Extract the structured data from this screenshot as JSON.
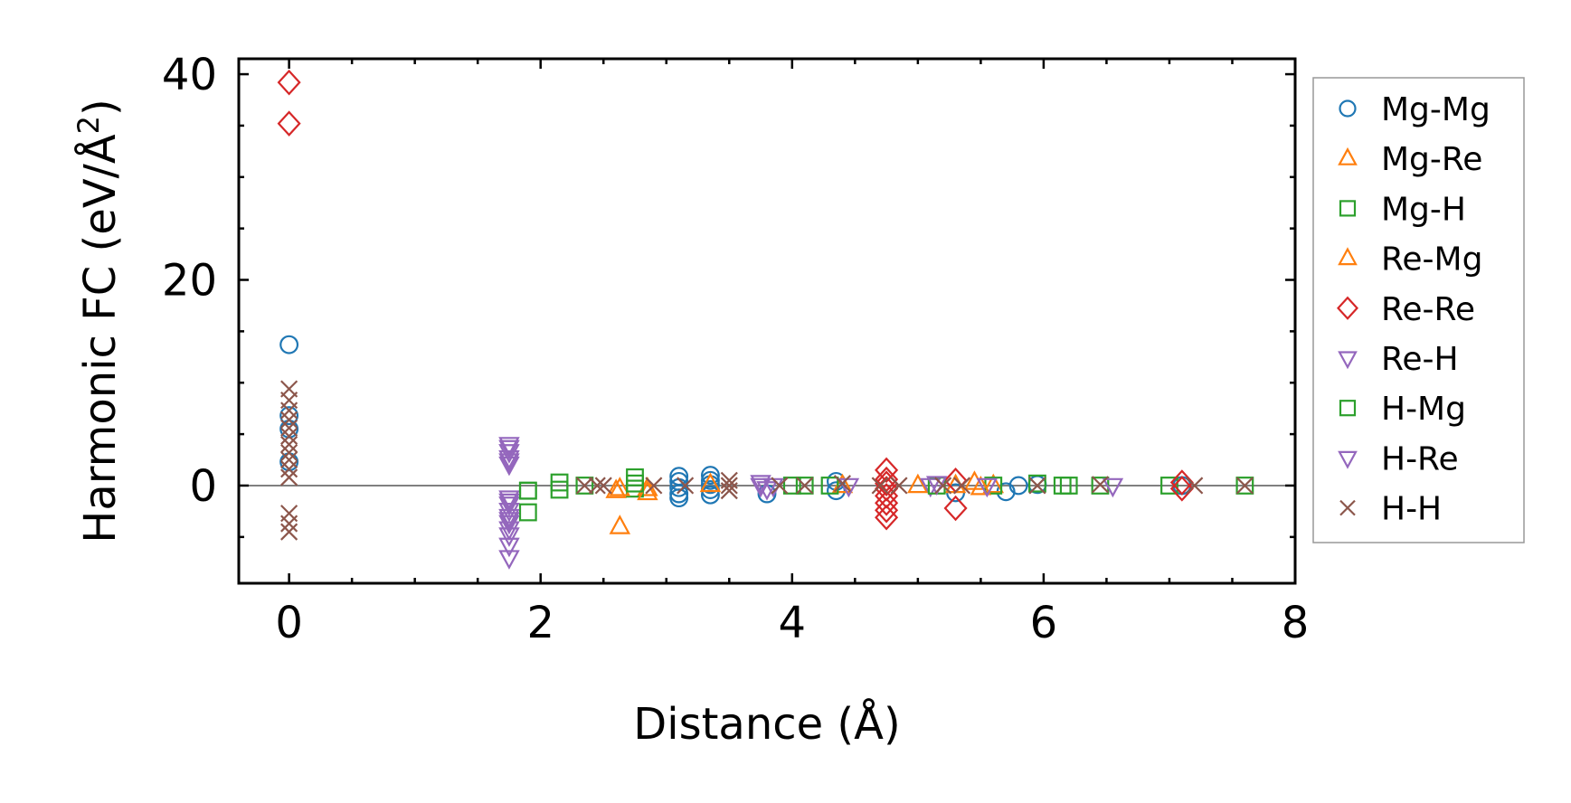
{
  "chart_data": {
    "type": "scatter",
    "xlabel": "Distance (Å)",
    "ylabel": "Harmonic FC (eV/Å",
    "ylabel_sup": "2",
    "ylabel_close": ")",
    "xlim": [
      -0.4,
      8
    ],
    "ylim": [
      -9.5,
      41.5
    ],
    "xticks": [
      0,
      2,
      4,
      6,
      8
    ],
    "yticks": [
      0,
      20,
      40
    ],
    "zero_line": true,
    "grid": false,
    "legend_position": "right",
    "series": [
      {
        "name": "Mg-Mg",
        "marker": "circle",
        "color": "#1f77b4",
        "points": [
          [
            0,
            13.7
          ],
          [
            0,
            6.8
          ],
          [
            0,
            5.5
          ],
          [
            0,
            2.3
          ],
          [
            3.1,
            0.9
          ],
          [
            3.1,
            0.4
          ],
          [
            3.1,
            -0.2
          ],
          [
            3.1,
            -0.8
          ],
          [
            3.1,
            -1.2
          ],
          [
            3.35,
            1.0
          ],
          [
            3.35,
            0.5
          ],
          [
            3.35,
            0.1
          ],
          [
            3.35,
            -0.4
          ],
          [
            3.35,
            -0.9
          ],
          [
            3.8,
            -0.8
          ],
          [
            4.35,
            0.4
          ],
          [
            4.35,
            -0.5
          ],
          [
            5.3,
            -0.7
          ],
          [
            5.7,
            -0.6
          ],
          [
            5.8,
            0
          ],
          [
            5.95,
            0.1
          ],
          [
            7.1,
            0
          ]
        ]
      },
      {
        "name": "Mg-Re",
        "marker": "triangle-up",
        "color": "#ff7f0e",
        "points": [
          [
            2.63,
            -4.0
          ],
          [
            2.6,
            -0.5
          ],
          [
            2.85,
            -0.3
          ],
          [
            3.35,
            0.1
          ],
          [
            4.4,
            0
          ],
          [
            5.0,
            0
          ],
          [
            5.45,
            0.3
          ],
          [
            5.6,
            0
          ]
        ]
      },
      {
        "name": "Mg-H",
        "marker": "square",
        "color": "#2ca02c",
        "points": [
          [
            1.9,
            -2.6
          ],
          [
            1.9,
            -0.5
          ],
          [
            2.15,
            0.3
          ],
          [
            2.15,
            -0.4
          ],
          [
            2.35,
            0
          ],
          [
            2.75,
            0.8
          ],
          [
            2.75,
            -0.3
          ],
          [
            4.0,
            0
          ],
          [
            4.1,
            0
          ],
          [
            4.3,
            0
          ],
          [
            5.6,
            0
          ],
          [
            5.95,
            0.2
          ],
          [
            6.2,
            0
          ],
          [
            6.45,
            0
          ],
          [
            7.0,
            0
          ],
          [
            7.6,
            0
          ]
        ]
      },
      {
        "name": "Re-Mg",
        "marker": "triangle-up",
        "color": "#ff7f0e",
        "points": [
          [
            2.63,
            -0.3
          ],
          [
            2.85,
            -0.7
          ],
          [
            5.3,
            0
          ],
          [
            5.5,
            -0.2
          ]
        ]
      },
      {
        "name": "Re-Re",
        "marker": "diamond",
        "color": "#d62728",
        "points": [
          [
            0,
            39.2
          ],
          [
            0,
            35.2
          ],
          [
            4.75,
            1.5
          ],
          [
            4.75,
            0.6
          ],
          [
            4.75,
            0.2
          ],
          [
            4.75,
            -0.3
          ],
          [
            4.75,
            -1.0
          ],
          [
            4.75,
            -1.7
          ],
          [
            4.75,
            -2.4
          ],
          [
            4.75,
            -3.1
          ],
          [
            5.3,
            0.5
          ],
          [
            5.3,
            -2.2
          ],
          [
            7.1,
            0.3
          ],
          [
            7.1,
            -0.3
          ]
        ]
      },
      {
        "name": "Re-H",
        "marker": "triangle-down",
        "color": "#9467bd",
        "points": [
          [
            1.75,
            4.0
          ],
          [
            1.75,
            3.3
          ],
          [
            1.75,
            2.7
          ],
          [
            1.75,
            2.1
          ],
          [
            1.75,
            -1.2
          ],
          [
            1.75,
            -1.8
          ],
          [
            1.75,
            -2.4
          ],
          [
            1.75,
            -3.0
          ],
          [
            1.75,
            -3.6
          ],
          [
            1.75,
            -4.2
          ],
          [
            1.75,
            -4.8
          ],
          [
            1.75,
            -5.8
          ],
          [
            1.75,
            -7.0
          ],
          [
            3.75,
            0.3
          ],
          [
            3.8,
            -0.3
          ],
          [
            4.45,
            0
          ],
          [
            5.1,
            0
          ],
          [
            5.55,
            0
          ],
          [
            6.55,
            0
          ]
        ]
      },
      {
        "name": "H-Mg",
        "marker": "square",
        "color": "#2ca02c",
        "points": [
          [
            1.9,
            -0.5
          ],
          [
            2.75,
            0.2
          ],
          [
            5.15,
            0
          ],
          [
            6.15,
            0
          ]
        ]
      },
      {
        "name": "H-Re",
        "marker": "triangle-down",
        "color": "#9467bd",
        "points": [
          [
            1.75,
            3.7
          ],
          [
            1.75,
            2.4
          ],
          [
            1.75,
            -1.5
          ],
          [
            1.75,
            -3.3
          ],
          [
            3.75,
            0
          ],
          [
            3.85,
            0
          ],
          [
            5.15,
            0.2
          ]
        ]
      },
      {
        "name": "H-H",
        "marker": "x",
        "color": "#8c564b",
        "points": [
          [
            0,
            9.4
          ],
          [
            0,
            8.3
          ],
          [
            0,
            7.3
          ],
          [
            0,
            6.4
          ],
          [
            0,
            5.6
          ],
          [
            0,
            4.8
          ],
          [
            0,
            4.0
          ],
          [
            0,
            3.2
          ],
          [
            0,
            2.5
          ],
          [
            0,
            1.6
          ],
          [
            0,
            0.8
          ],
          [
            0,
            -2.7
          ],
          [
            0,
            -3.7
          ],
          [
            0,
            -4.5
          ],
          [
            2.35,
            0
          ],
          [
            2.45,
            0
          ],
          [
            2.5,
            0
          ],
          [
            2.9,
            0
          ],
          [
            3.15,
            0
          ],
          [
            3.5,
            0.5
          ],
          [
            3.5,
            0
          ],
          [
            3.5,
            -0.5
          ],
          [
            3.9,
            0
          ],
          [
            4.1,
            0
          ],
          [
            4.4,
            0.2
          ],
          [
            4.7,
            0
          ],
          [
            4.85,
            0
          ],
          [
            5.2,
            0
          ],
          [
            5.35,
            0
          ],
          [
            5.95,
            0
          ],
          [
            6.45,
            0.1
          ],
          [
            7.2,
            0
          ],
          [
            7.6,
            0
          ]
        ]
      }
    ]
  }
}
